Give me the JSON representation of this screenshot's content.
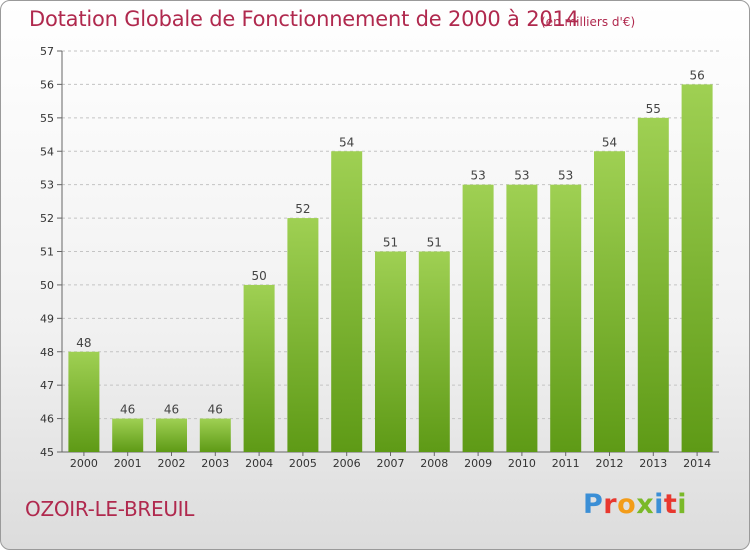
{
  "header": {
    "title": "Dotation Globale de Fonctionnement de 2000 à 2014",
    "unit": "(en milliers d'€)"
  },
  "footer": {
    "commune": "OZOIR-LE-BREUIL",
    "logo_text": "Proxiti",
    "logo_colors": [
      "#3b8fd6",
      "#e8382f",
      "#f39c19",
      "#7ab929",
      "#3b8fd6",
      "#e8382f",
      "#7ab929"
    ]
  },
  "colors": {
    "bar_top": "#9fd053",
    "bar_bottom": "#5e9a16",
    "text_accent": "#b0294e",
    "gridline": "#c4c4c4"
  },
  "chart_data": {
    "type": "bar",
    "title": "Dotation Globale de Fonctionnement de 2000 à 2014",
    "subtitle": "(en milliers d'€)",
    "xlabel": "",
    "ylabel": "",
    "categories": [
      "2000",
      "2001",
      "2002",
      "2003",
      "2004",
      "2005",
      "2006",
      "2007",
      "2008",
      "2009",
      "2010",
      "2011",
      "2012",
      "2013",
      "2014"
    ],
    "values": [
      48,
      46,
      46,
      46,
      50,
      52,
      54,
      51,
      51,
      53,
      53,
      53,
      54,
      55,
      56
    ],
    "ylim": [
      45,
      57
    ],
    "yticks": [
      45,
      46,
      47,
      48,
      49,
      50,
      51,
      52,
      53,
      54,
      55,
      56,
      57
    ],
    "grid": true,
    "data_labels": true
  }
}
